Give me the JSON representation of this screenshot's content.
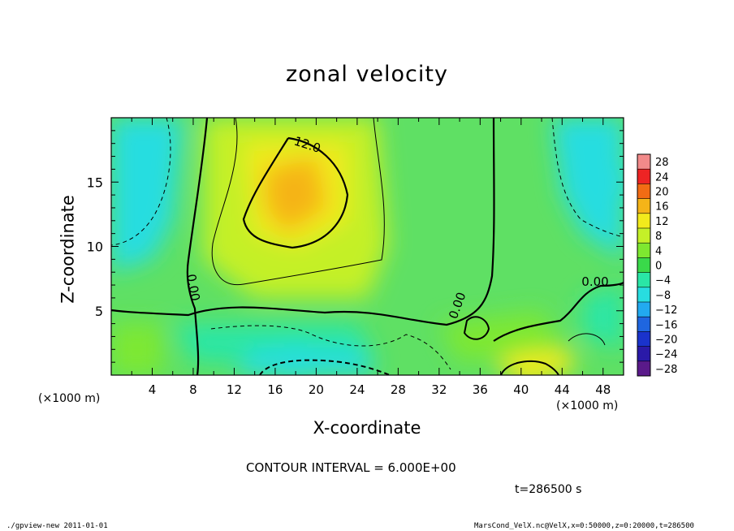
{
  "chart_data": {
    "type": "heatmap",
    "title": "zonal velocity",
    "xlabel": "X-coordinate",
    "ylabel": "Z-coordinate",
    "x_unit": "(×1000 m)",
    "y_unit": "(×1000 m)",
    "xlim": [
      0,
      50
    ],
    "ylim": [
      0,
      20
    ],
    "x_ticks": [
      4,
      8,
      12,
      16,
      20,
      24,
      28,
      32,
      36,
      40,
      44,
      48
    ],
    "y_ticks": [
      5,
      10,
      15
    ],
    "colorbar": {
      "levels": [
        28,
        24,
        20,
        16,
        12,
        8,
        4,
        0,
        -4,
        -8,
        -12,
        -16,
        -20,
        -24,
        -28
      ],
      "labels": [
        "28",
        "24",
        "20",
        "16",
        "12",
        "8",
        "4",
        "0",
        "−4",
        "−8",
        "−12",
        "−16",
        "−20",
        "−24",
        "−28"
      ]
    },
    "contour_labels": [
      "12.0",
      "0.00",
      "0.00",
      "0.00"
    ],
    "contour_interval": "CONTOUR INTERVAL = 6.000E+00",
    "time": "t=286500 s",
    "features": [
      {
        "x": 17,
        "z": 14.5,
        "value": 14
      },
      {
        "x": 18,
        "z": 1,
        "value": -9
      },
      {
        "x": 41,
        "z": 0.5,
        "value": 13
      },
      {
        "x": 2,
        "z": 15,
        "value": -7
      },
      {
        "x": 49,
        "z": 15,
        "value": -7
      }
    ]
  },
  "footer": {
    "left": "./gpview-new   2011-01-01",
    "right": "MarsCond_VelX.nc@VelX,x=0:50000,z=0:20000,t=286500"
  }
}
